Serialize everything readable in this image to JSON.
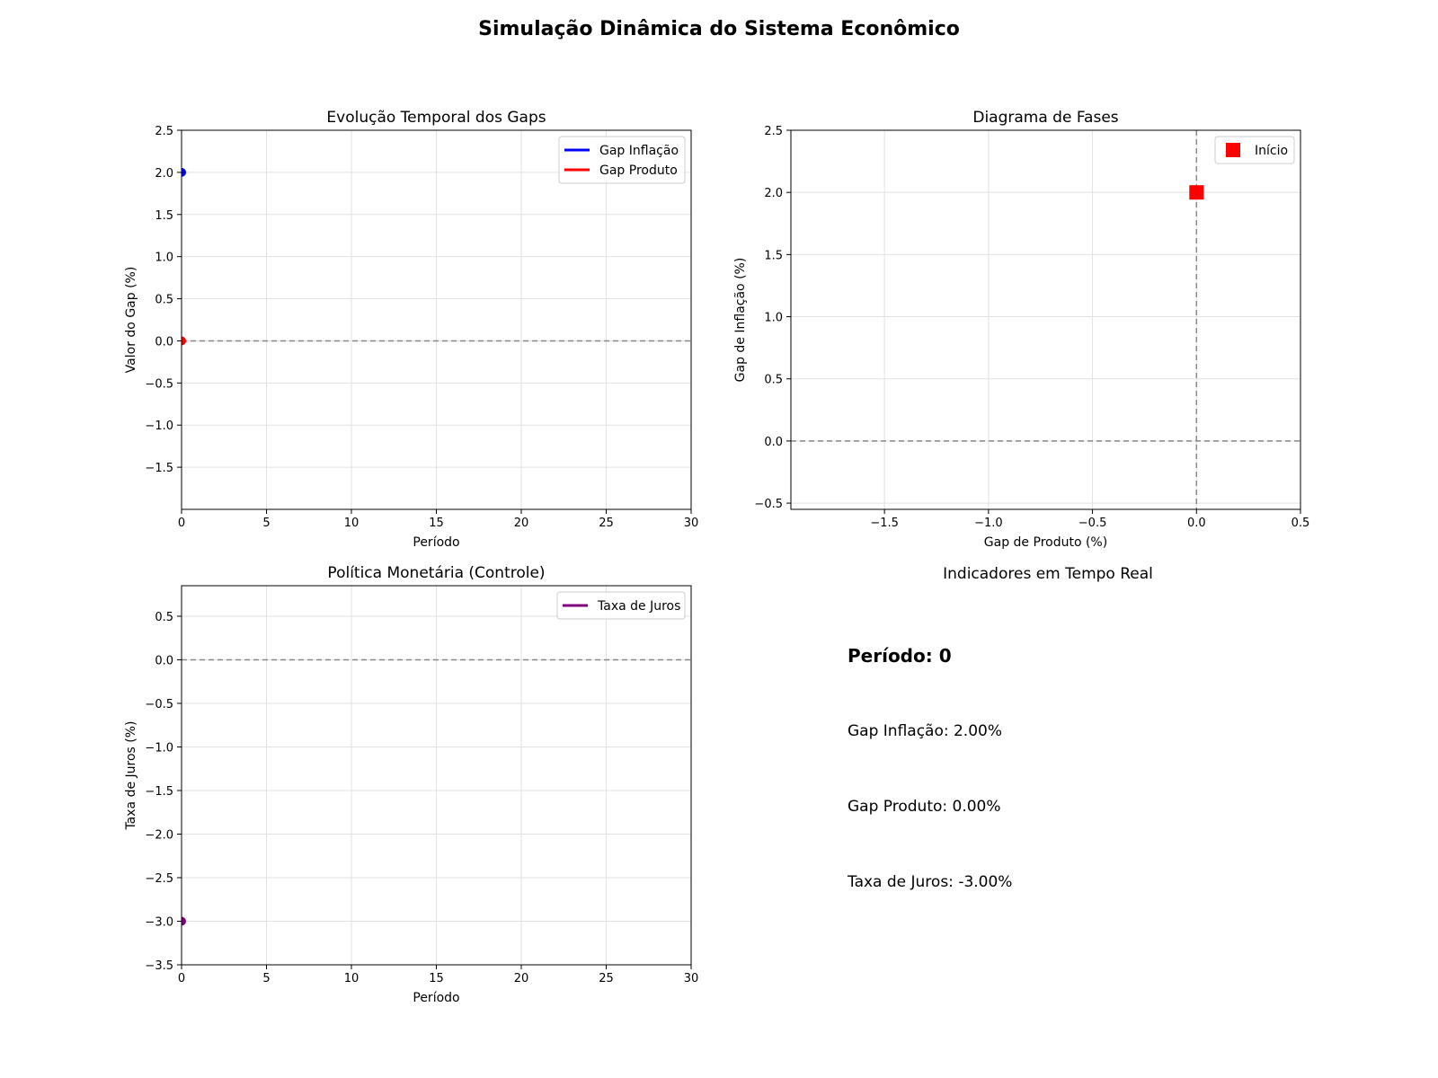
{
  "figure": {
    "suptitle": "Simulação Dinâmica do Sistema Econômico"
  },
  "chart_data": [
    {
      "id": "gaps",
      "type": "line",
      "title": "Evolução Temporal dos Gaps",
      "xlabel": "Período",
      "ylabel": "Valor do Gap (%)",
      "xlim": [
        0,
        30
      ],
      "ylim": [
        -2.0,
        2.5
      ],
      "xticks": [
        0,
        5,
        10,
        15,
        20,
        25,
        30
      ],
      "xtick_labels": [
        "0",
        "5",
        "10",
        "15",
        "20",
        "25",
        "30"
      ],
      "yticks": [
        -1.5,
        -1.0,
        -0.5,
        0.0,
        0.5,
        1.0,
        1.5,
        2.0,
        2.5
      ],
      "ytick_labels": [
        "−1.5",
        "−1.0",
        "−0.5",
        "0.0",
        "0.5",
        "1.0",
        "1.5",
        "2.0",
        "2.5"
      ],
      "grid": true,
      "legend_position": "top-right",
      "reference_lines": {
        "h": [
          0
        ],
        "v": []
      },
      "series": [
        {
          "name": "Gap Inflação",
          "color": "#0000ff",
          "x": [
            0
          ],
          "y": [
            2.0
          ]
        },
        {
          "name": "Gap Produto",
          "color": "#ff0000",
          "x": [
            0
          ],
          "y": [
            0.0
          ]
        }
      ]
    },
    {
      "id": "phase",
      "type": "scatter",
      "title": "Diagrama de Fases",
      "xlabel": "Gap de Produto (%)",
      "ylabel": "Gap de Inflação (%)",
      "xlim": [
        -1.95,
        0.5
      ],
      "ylim": [
        -0.55,
        2.5
      ],
      "xticks": [
        -1.5,
        -1.0,
        -0.5,
        0.0,
        0.5
      ],
      "xtick_labels": [
        "−1.5",
        "−1.0",
        "−0.5",
        "0.0",
        "0.5"
      ],
      "yticks": [
        -0.5,
        0.0,
        0.5,
        1.0,
        1.5,
        2.0,
        2.5
      ],
      "ytick_labels": [
        "−0.5",
        "0.0",
        "0.5",
        "1.0",
        "1.5",
        "2.0",
        "2.5"
      ],
      "grid": true,
      "legend_position": "top-right",
      "reference_lines": {
        "h": [
          0
        ],
        "v": [
          0
        ]
      },
      "series": [
        {
          "name": "Início",
          "color": "#ff0000",
          "marker": "square",
          "x": [
            0.0
          ],
          "y": [
            2.0
          ]
        }
      ]
    },
    {
      "id": "policy",
      "type": "line",
      "title": "Política Monetária (Controle)",
      "xlabel": "Período",
      "ylabel": "Taxa de Juros (%)",
      "xlim": [
        0,
        30
      ],
      "ylim": [
        -3.5,
        0.85
      ],
      "xticks": [
        0,
        5,
        10,
        15,
        20,
        25,
        30
      ],
      "xtick_labels": [
        "0",
        "5",
        "10",
        "15",
        "20",
        "25",
        "30"
      ],
      "yticks": [
        -3.5,
        -3.0,
        -2.5,
        -2.0,
        -1.5,
        -1.0,
        -0.5,
        0.0,
        0.5
      ],
      "ytick_labels": [
        "−3.5",
        "−3.0",
        "−2.5",
        "−2.0",
        "−1.5",
        "−1.0",
        "−0.5",
        "0.0",
        "0.5"
      ],
      "grid": true,
      "legend_position": "top-right",
      "reference_lines": {
        "h": [
          0
        ],
        "v": []
      },
      "series": [
        {
          "name": "Taxa de Juros",
          "color": "#800080",
          "x": [
            0
          ],
          "y": [
            -3.0
          ]
        }
      ]
    }
  ],
  "indicators": {
    "title": "Indicadores em Tempo Real",
    "period": "Período: 0",
    "gap_inflacao": "Gap Inflação: 2.00%",
    "gap_produto": "Gap Produto: 0.00%",
    "taxa_juros": "Taxa de Juros: -3.00%"
  }
}
